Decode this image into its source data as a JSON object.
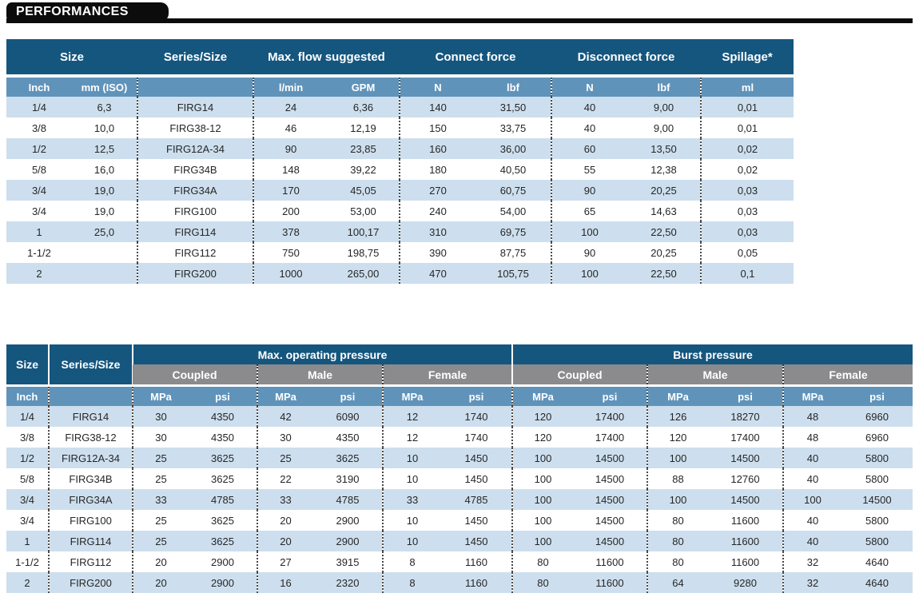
{
  "banner": {
    "title": "PERFORMANCES"
  },
  "colors": {
    "header_dark_blue": "#15567e",
    "unit_row_blue": "#6093ba",
    "subheader_gray": "#8b8b8d",
    "row_stripe_blue": "#cddfee",
    "banner_black": "#0c0c0c"
  },
  "t1": {
    "groups": [
      "Size",
      "Series/Size",
      "Max. flow suggested",
      "Connect force",
      "Disconnect force",
      "Spillage*"
    ],
    "units": [
      "Inch",
      "mm (ISO)",
      "",
      "l/min",
      "GPM",
      "N",
      "lbf",
      "N",
      "lbf",
      "ml"
    ],
    "rows": [
      [
        "1/4",
        "6,3",
        "FIRG14",
        "24",
        "6,36",
        "140",
        "31,50",
        "40",
        "9,00",
        "0,01"
      ],
      [
        "3/8",
        "10,0",
        "FIRG38-12",
        "46",
        "12,19",
        "150",
        "33,75",
        "40",
        "9,00",
        "0,01"
      ],
      [
        "1/2",
        "12,5",
        "FIRG12A-34",
        "90",
        "23,85",
        "160",
        "36,00",
        "60",
        "13,50",
        "0,02"
      ],
      [
        "5/8",
        "16,0",
        "FIRG34B",
        "148",
        "39,22",
        "180",
        "40,50",
        "55",
        "12,38",
        "0,02"
      ],
      [
        "3/4",
        "19,0",
        "FIRG34A",
        "170",
        "45,05",
        "270",
        "60,75",
        "90",
        "20,25",
        "0,03"
      ],
      [
        "3/4",
        "19,0",
        "FIRG100",
        "200",
        "53,00",
        "240",
        "54,00",
        "65",
        "14,63",
        "0,03"
      ],
      [
        "1",
        "25,0",
        "FIRG114",
        "378",
        "100,17",
        "310",
        "69,75",
        "100",
        "22,50",
        "0,03"
      ],
      [
        "1-1/2",
        "",
        "FIRG112",
        "750",
        "198,75",
        "390",
        "87,75",
        "90",
        "20,25",
        "0,05"
      ],
      [
        "2",
        "",
        "FIRG200",
        "1000",
        "265,00",
        "470",
        "105,75",
        "100",
        "22,50",
        "0,1"
      ]
    ]
  },
  "t2": {
    "left_headers": [
      "Size",
      "Series/Size"
    ],
    "groups": [
      "Max. operating pressure",
      "Burst pressure"
    ],
    "subgroups": [
      "Coupled",
      "Male",
      "Female",
      "Coupled",
      "Male",
      "Female"
    ],
    "units": [
      "Inch",
      "",
      "MPa",
      "psi",
      "MPa",
      "psi",
      "MPa",
      "psi",
      "MPa",
      "psi",
      "MPa",
      "psi",
      "MPa",
      "psi"
    ],
    "rows": [
      [
        "1/4",
        "FIRG14",
        "30",
        "4350",
        "42",
        "6090",
        "12",
        "1740",
        "120",
        "17400",
        "126",
        "18270",
        "48",
        "6960"
      ],
      [
        "3/8",
        "FIRG38-12",
        "30",
        "4350",
        "30",
        "4350",
        "12",
        "1740",
        "120",
        "17400",
        "120",
        "17400",
        "48",
        "6960"
      ],
      [
        "1/2",
        "FIRG12A-34",
        "25",
        "3625",
        "25",
        "3625",
        "10",
        "1450",
        "100",
        "14500",
        "100",
        "14500",
        "40",
        "5800"
      ],
      [
        "5/8",
        "FIRG34B",
        "25",
        "3625",
        "22",
        "3190",
        "10",
        "1450",
        "100",
        "14500",
        "88",
        "12760",
        "40",
        "5800"
      ],
      [
        "3/4",
        "FIRG34A",
        "33",
        "4785",
        "33",
        "4785",
        "33",
        "4785",
        "100",
        "14500",
        "100",
        "14500",
        "100",
        "14500"
      ],
      [
        "3/4",
        "FIRG100",
        "25",
        "3625",
        "20",
        "2900",
        "10",
        "1450",
        "100",
        "14500",
        "80",
        "11600",
        "40",
        "5800"
      ],
      [
        "1",
        "FIRG114",
        "25",
        "3625",
        "20",
        "2900",
        "10",
        "1450",
        "100",
        "14500",
        "80",
        "11600",
        "40",
        "5800"
      ],
      [
        "1-1/2",
        "FIRG112",
        "20",
        "2900",
        "27",
        "3915",
        "8",
        "1160",
        "80",
        "11600",
        "80",
        "11600",
        "32",
        "4640"
      ],
      [
        "2",
        "FIRG200",
        "20",
        "2900",
        "16",
        "2320",
        "8",
        "1160",
        "80",
        "11600",
        "64",
        "9280",
        "32",
        "4640"
      ]
    ]
  }
}
